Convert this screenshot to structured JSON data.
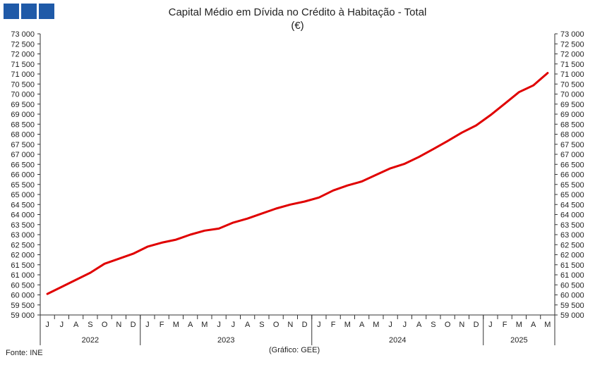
{
  "title_line1": "Capital Médio em Dívida no Crédito à Habitação - Total",
  "title_line2": "(€)",
  "source": "Fonte: INE",
  "credit": "(Gráfico: GEE)",
  "colors": {
    "line": "#e00000",
    "logo": "#1f5aa8",
    "axis": "#333333"
  },
  "chart_data": {
    "type": "line",
    "ylim": [
      59000,
      73000
    ],
    "y_ticks": [
      "59 000",
      "59 500",
      "60 000",
      "60 500",
      "61 000",
      "61 500",
      "62 000",
      "62 500",
      "63 000",
      "63 500",
      "64 000",
      "64 500",
      "65 000",
      "65 500",
      "66 000",
      "66 500",
      "67 000",
      "67 500",
      "68 000",
      "68 500",
      "69 000",
      "69 500",
      "70 000",
      "70 500",
      "71 000",
      "71 500",
      "72 000",
      "72 500",
      "73 000"
    ],
    "y_tick_values": [
      59000,
      59500,
      60000,
      60500,
      61000,
      61500,
      62000,
      62500,
      63000,
      63500,
      64000,
      64500,
      65000,
      65500,
      66000,
      66500,
      67000,
      67500,
      68000,
      68500,
      69000,
      69500,
      70000,
      70500,
      71000,
      71500,
      72000,
      72500,
      73000
    ],
    "month_labels": [
      "J",
      "J",
      "A",
      "S",
      "O",
      "N",
      "D",
      "J",
      "F",
      "M",
      "A",
      "M",
      "J",
      "J",
      "A",
      "S",
      "O",
      "N",
      "D",
      "J",
      "F",
      "M",
      "A",
      "M",
      "J",
      "J",
      "A",
      "S",
      "O",
      "N",
      "D",
      "J",
      "F",
      "M",
      "A",
      "M"
    ],
    "years": [
      {
        "label": "2022",
        "months": 7
      },
      {
        "label": "2023",
        "months": 12
      },
      {
        "label": "2024",
        "months": 12
      },
      {
        "label": "2025",
        "months": 5
      }
    ],
    "series": [
      {
        "values": [
          60050,
          60400,
          60750,
          61100,
          61550,
          61800,
          62050,
          62400,
          62600,
          62750,
          63000,
          63200,
          63300,
          63600,
          63800,
          64050,
          64300,
          64500,
          64650,
          64850,
          65200,
          65450,
          65650,
          65980,
          66300,
          66530,
          66870,
          67260,
          67660,
          68080,
          68440,
          68950,
          69520,
          70100,
          70430,
          71050
        ]
      }
    ],
    "grid": false
  }
}
